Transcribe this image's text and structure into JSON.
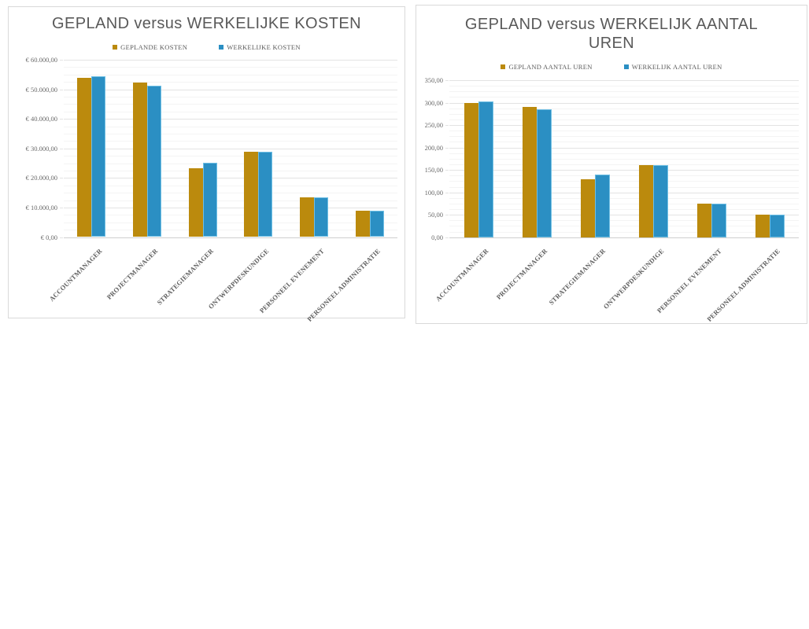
{
  "colors": {
    "gold": "#BB8A0D",
    "blue": "#2B8FC3",
    "blue_edge": "#6FBFE4",
    "title_text": "#595959",
    "tick_text": "#696969",
    "grid_major": "#E3E3E3",
    "grid_minor": "#F4F4F4",
    "axis_line": "#CFCFCF",
    "card_border": "#D9D9D9"
  },
  "chart_data": [
    {
      "type": "bar",
      "title": "GEPLAND versus WERKELIJKE KOSTEN",
      "legend_position": "top",
      "grid": true,
      "categories": [
        "ACCOUNTMANAGER",
        "PROJECTMANAGER",
        "STRATEGIEMANAGER",
        "ONTWERPDESKUNDIGE",
        "PERSONEEL EVENEMENT",
        "PERSONEEL ADMINISTRATIE"
      ],
      "series": [
        {
          "name": "GEPLANDE KOSTEN",
          "color_key": "gold",
          "values": [
            54000,
            52200,
            23400,
            28800,
            13500,
            9000
          ]
        },
        {
          "name": "WERKELIJKE KOSTEN",
          "color_key": "blue",
          "values": [
            54360,
            51300,
            25200,
            28800,
            13500,
            9000
          ]
        }
      ],
      "xlabel": "",
      "ylabel": "",
      "ylim": [
        0,
        60000
      ],
      "ytick_step": 10000,
      "ytick_labels": [
        "€ 60.000,00",
        "€ 50.000,00",
        "€ 40.000,00",
        "€ 30.000,00",
        "€ 20.000,00",
        "€ 10.000,00",
        "€ 0,00"
      ]
    },
    {
      "type": "bar",
      "title": "GEPLAND versus WERKELIJK AANTAL UREN",
      "legend_position": "top",
      "grid": true,
      "categories": [
        "ACCOUNTMANAGER",
        "PROJECTMANAGER",
        "STRATEGIEMANAGER",
        "ONTWERPDESKUNDIGE",
        "PERSONEEL EVENEMENT",
        "PERSONEEL ADMINISTRATIE"
      ],
      "series": [
        {
          "name": "GEPLAND AANTAL UREN",
          "color_key": "gold",
          "values": [
            300,
            290,
            130,
            160,
            75,
            50
          ]
        },
        {
          "name": "WERKELIJK AANTAL UREN",
          "color_key": "blue",
          "values": [
            302,
            285,
            140,
            160,
            75,
            50
          ]
        }
      ],
      "xlabel": "",
      "ylabel": "",
      "ylim": [
        0,
        350
      ],
      "ytick_step": 50,
      "ytick_labels": [
        "350,00",
        "300,00",
        "250,00",
        "200,00",
        "150,00",
        "100,00",
        "50,00",
        "0,00"
      ]
    }
  ]
}
